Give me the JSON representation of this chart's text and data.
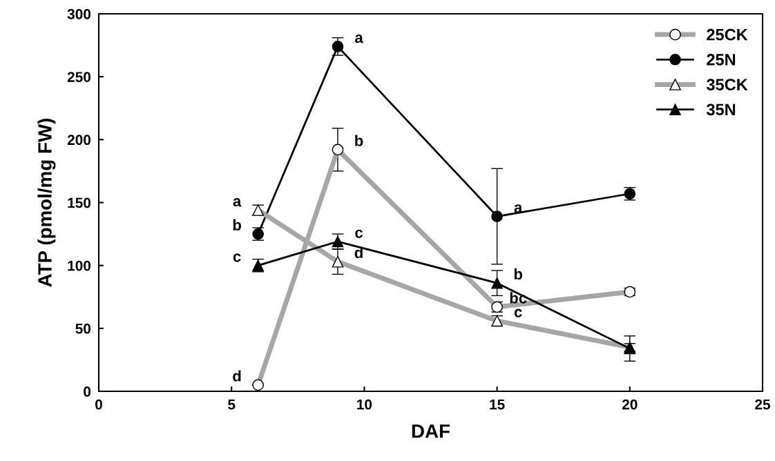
{
  "chart_data": {
    "type": "line",
    "xlabel": "DAF",
    "ylabel": "ATP (pmol/mg FW)",
    "xlim": [
      0,
      25
    ],
    "xticks": [
      0,
      5,
      10,
      15,
      20,
      25
    ],
    "ylim": [
      0,
      300
    ],
    "yticks": [
      0,
      50,
      100,
      150,
      200,
      250,
      300
    ],
    "x": [
      6,
      9,
      15,
      20
    ],
    "grid": false,
    "legend": "top right",
    "series": [
      {
        "name": "25CK",
        "color": "#a6a6a6",
        "values": [
          5,
          192,
          67,
          79
        ],
        "errors": [
          null,
          17,
          4,
          3
        ],
        "marker": "circle"
      },
      {
        "name": "25N",
        "color": "#000000",
        "values": [
          125,
          274,
          139,
          157
        ],
        "errors": [
          5,
          7,
          38,
          5
        ],
        "marker": "circle"
      },
      {
        "name": "35CK",
        "color": "#a6a6a6",
        "values": [
          144,
          103,
          56,
          35
        ],
        "errors": [
          4,
          10,
          4,
          3
        ],
        "marker": "triangle"
      },
      {
        "name": "35N",
        "color": "#000000",
        "values": [
          100,
          119,
          86,
          34
        ],
        "errors": [
          5,
          6,
          10,
          10
        ],
        "marker": "triangle"
      }
    ],
    "annotations": [
      {
        "text": "a",
        "x": 6,
        "y": 144
      },
      {
        "text": "b",
        "x": 6,
        "y": 125
      },
      {
        "text": "c",
        "x": 6,
        "y": 100
      },
      {
        "text": "d",
        "x": 6,
        "y": 5
      },
      {
        "text": "a",
        "x": 9,
        "y": 274
      },
      {
        "text": "b",
        "x": 9,
        "y": 192
      },
      {
        "text": "c",
        "x": 9,
        "y": 119
      },
      {
        "text": "d",
        "x": 9,
        "y": 103
      },
      {
        "text": "a",
        "x": 15,
        "y": 139
      },
      {
        "text": "b",
        "x": 15,
        "y": 86
      },
      {
        "text": "bc",
        "x": 15,
        "y": 67
      },
      {
        "text": "c",
        "x": 15,
        "y": 56
      }
    ]
  }
}
